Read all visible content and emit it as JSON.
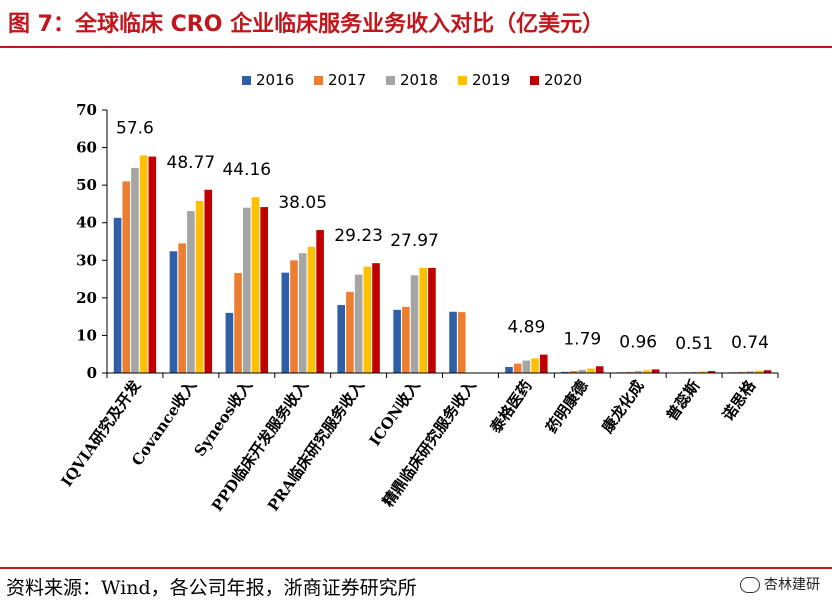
{
  "header": {
    "title": "图 7：全球临床 CRO 企业临床服务业务收入对比（亿美元）"
  },
  "footer": {
    "source": "资料来源：Wind，各公司年报，浙商证券研究所",
    "watermark": "杏林建研"
  },
  "chart_data": {
    "type": "bar",
    "title": "",
    "xlabel": "",
    "ylabel": "",
    "ylim": [
      0,
      70
    ],
    "yticks": [
      0,
      10,
      20,
      30,
      40,
      50,
      60,
      70
    ],
    "grid": false,
    "legend_position": "top-center",
    "categories": [
      "IQVIA研究及开发",
      "Covance收入",
      "Syneos收入",
      "PPD临床开发服务收入",
      "PRA临床研究服务收入",
      "ICON收入",
      "精鼎临床研究服务收入",
      "泰格医药",
      "药明康德",
      "康龙化成",
      "普蕊斯",
      "诺思格"
    ],
    "series": [
      {
        "name": "2016",
        "color": "#2e5fa8",
        "values": [
          41.3,
          32.4,
          16.0,
          26.7,
          18.1,
          16.8,
          16.3,
          1.6,
          0.3,
          0.2,
          0.15,
          0.2
        ]
      },
      {
        "name": "2017",
        "color": "#ed7d31",
        "values": [
          51.0,
          34.5,
          26.6,
          30.0,
          21.6,
          17.6,
          16.2,
          2.5,
          0.5,
          0.3,
          0.2,
          0.3
        ]
      },
      {
        "name": "2018",
        "color": "#a5a5a5",
        "values": [
          54.6,
          43.1,
          44.0,
          31.9,
          26.2,
          26.0,
          null,
          3.3,
          0.8,
          0.5,
          0.3,
          0.45
        ]
      },
      {
        "name": "2019",
        "color": "#ffc000",
        "values": [
          57.9,
          45.8,
          46.8,
          33.6,
          28.3,
          28.0,
          null,
          3.9,
          1.2,
          0.75,
          0.4,
          0.6
        ]
      },
      {
        "name": "2020",
        "color": "#c00000",
        "values": [
          57.6,
          48.77,
          44.16,
          38.05,
          29.23,
          27.97,
          null,
          4.89,
          1.79,
          0.96,
          0.51,
          0.74
        ]
      }
    ],
    "data_labels": [
      "57.6",
      "48.77",
      "44.16",
      "38.05",
      "29.23",
      "27.97",
      "",
      "4.89",
      "1.79",
      "0.96",
      "0.51",
      "0.74"
    ]
  }
}
